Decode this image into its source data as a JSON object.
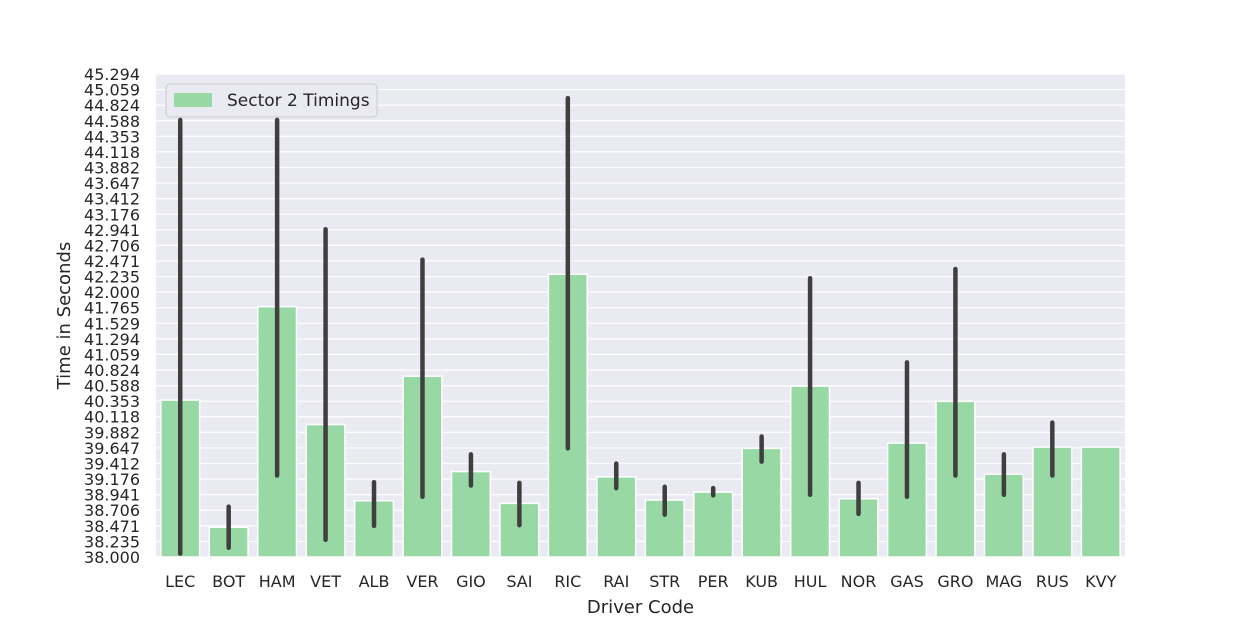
{
  "chart_data": {
    "type": "bar",
    "xlabel": "Driver Code",
    "ylabel": "Time in Seconds",
    "ylim": [
      38.0,
      45.294
    ],
    "yticks": [
      "38.000",
      "38.235",
      "38.471",
      "38.706",
      "38.941",
      "39.176",
      "39.412",
      "39.647",
      "39.882",
      "40.118",
      "40.353",
      "40.588",
      "40.824",
      "41.059",
      "41.294",
      "41.529",
      "41.765",
      "42.000",
      "42.235",
      "42.471",
      "42.706",
      "42.941",
      "43.176",
      "43.412",
      "43.647",
      "43.882",
      "44.118",
      "44.353",
      "44.588",
      "44.824",
      "45.059",
      "45.294"
    ],
    "categories": [
      "LEC",
      "BOT",
      "HAM",
      "VET",
      "ALB",
      "VER",
      "GIO",
      "SAI",
      "RIC",
      "RAI",
      "STR",
      "PER",
      "KUB",
      "HUL",
      "NOR",
      "GAS",
      "GRO",
      "MAG",
      "RUS",
      "KVY"
    ],
    "series": [
      {
        "name": "Sector 2 Timings",
        "color": "#97d8a5",
        "values": [
          40.37,
          38.45,
          41.78,
          40.0,
          38.85,
          40.73,
          39.29,
          38.81,
          42.27,
          39.21,
          38.86,
          38.98,
          39.64,
          40.58,
          38.88,
          39.72,
          40.35,
          39.25,
          39.66,
          39.66
        ],
        "error_low": [
          38.05,
          38.14,
          39.23,
          38.26,
          38.47,
          38.91,
          39.08,
          38.48,
          39.64,
          39.04,
          38.64,
          38.93,
          39.44,
          38.94,
          38.65,
          38.91,
          39.23,
          38.94,
          39.23,
          null
        ],
        "error_high": [
          44.6,
          38.76,
          44.6,
          42.95,
          39.13,
          42.49,
          39.55,
          39.12,
          44.93,
          39.41,
          39.06,
          39.04,
          39.82,
          42.21,
          39.12,
          40.94,
          42.35,
          39.55,
          40.03,
          null
        ]
      }
    ],
    "grid": true,
    "legend": "top-left",
    "colors": {
      "plot_bg": "#eaeaf2",
      "grid": "#ffffff",
      "errorbar": "#3f3f3f",
      "text": "#262626"
    }
  }
}
